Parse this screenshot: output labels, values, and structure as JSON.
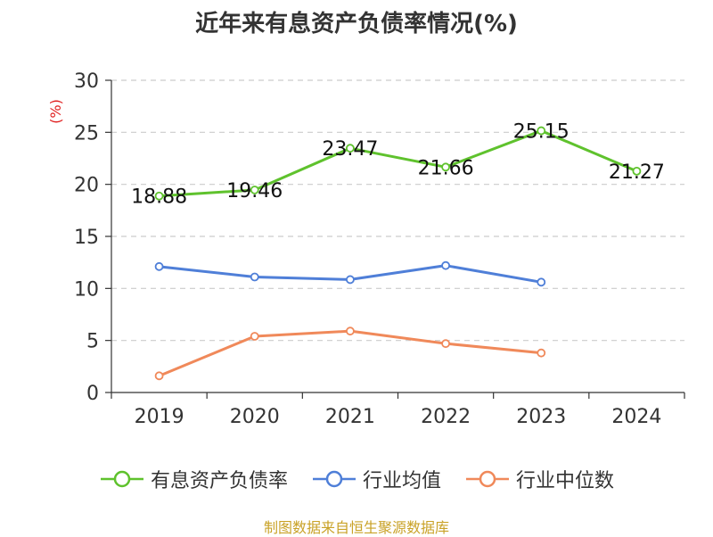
{
  "title": "近年来有息资产负债率情况(%)",
  "footer": "制图数据来自恒生聚源数据库",
  "colors": {
    "series_1": "#5fc22d",
    "series_2": "#4f7fd8",
    "series_3": "#f0895a",
    "grid": "#cccccc",
    "axis": "#333333",
    "unit": "#e02020"
  },
  "chart_data": {
    "type": "line",
    "title": "近年来有息资产负债率情况(%)",
    "ylabel": "(%)",
    "xlabel": "",
    "categories": [
      "2019",
      "2020",
      "2021",
      "2022",
      "2023",
      "2024"
    ],
    "ylim": [
      0,
      30
    ],
    "yticks": [
      0,
      5,
      10,
      15,
      20,
      25,
      30
    ],
    "grid": "horizontal dashed",
    "legend_position": "bottom",
    "series": [
      {
        "name": "有息资产负债率",
        "values": [
          18.88,
          19.46,
          23.47,
          21.66,
          25.15,
          21.27
        ],
        "data_labels": [
          "18.88",
          "19.46",
          "23.47",
          "21.66",
          "25.15",
          "21.27"
        ]
      },
      {
        "name": "行业均值",
        "values": [
          12.1,
          11.1,
          10.85,
          12.2,
          10.6,
          null
        ]
      },
      {
        "name": "行业中位数",
        "values": [
          1.6,
          5.4,
          5.9,
          4.7,
          3.8,
          null
        ]
      }
    ]
  }
}
